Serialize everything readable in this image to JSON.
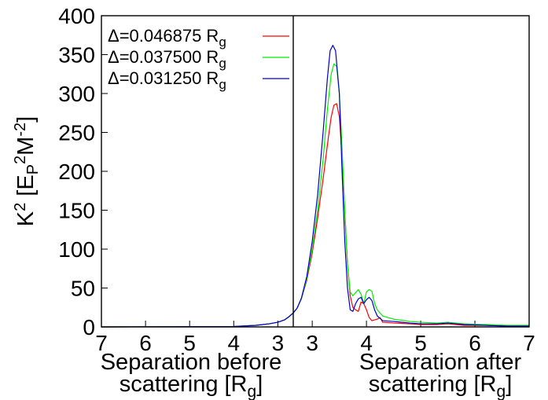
{
  "chart_data": {
    "type": "line",
    "ylabel_parts": {
      "k": "K",
      "k_sup": "2",
      "mid": " [E",
      "p": "P",
      "p_sup": "2",
      "m": "M",
      "m_sup": "-2",
      "close": "]"
    },
    "yticks": [
      "0",
      "50",
      "100",
      "150",
      "200",
      "250",
      "300",
      "350",
      "400"
    ],
    "ylim": [
      0,
      400
    ],
    "panels": [
      {
        "id": "before",
        "xlabel_line1": "Separation before",
        "xlabel_line2_text": "scattering [R",
        "xlabel_line2_sub": "g",
        "xlabel_line2_close": "]",
        "xlim": [
          7,
          2.65
        ],
        "xticks": [
          "7",
          "6",
          "5",
          "4",
          "3"
        ]
      },
      {
        "id": "after",
        "xlabel_line1": "Separation after",
        "xlabel_line2_text": "scattering [R",
        "xlabel_line2_sub": "g",
        "xlabel_line2_close": "]",
        "xlim": [
          2.65,
          7
        ],
        "xticks": [
          "3",
          "4",
          "5",
          "6",
          "7"
        ]
      }
    ],
    "legend": {
      "position": "top-left"
    },
    "series": [
      {
        "name_prefix": "Δ=0.046875 R",
        "name_sub": "g",
        "color": "#ff0000",
        "before": [
          [
            7.0,
            0
          ],
          [
            4.0,
            0.5
          ],
          [
            3.5,
            2
          ],
          [
            3.2,
            4
          ],
          [
            3.0,
            6
          ],
          [
            2.85,
            9
          ],
          [
            2.75,
            13
          ],
          [
            2.65,
            18
          ]
        ],
        "after": [
          [
            2.65,
            18
          ],
          [
            2.72,
            24
          ],
          [
            2.8,
            36
          ],
          [
            2.9,
            60
          ],
          [
            3.0,
            95
          ],
          [
            3.1,
            140
          ],
          [
            3.2,
            190
          ],
          [
            3.3,
            245
          ],
          [
            3.35,
            270
          ],
          [
            3.4,
            285
          ],
          [
            3.45,
            287
          ],
          [
            3.5,
            270
          ],
          [
            3.55,
            220
          ],
          [
            3.6,
            150
          ],
          [
            3.65,
            80
          ],
          [
            3.7,
            40
          ],
          [
            3.75,
            25
          ],
          [
            3.8,
            22
          ],
          [
            3.85,
            20
          ],
          [
            3.9,
            32
          ],
          [
            3.95,
            30
          ],
          [
            4.0,
            22
          ],
          [
            4.05,
            12
          ],
          [
            4.1,
            8
          ],
          [
            4.2,
            10
          ],
          [
            4.25,
            12
          ],
          [
            4.3,
            6
          ],
          [
            4.5,
            5
          ],
          [
            4.8,
            4
          ],
          [
            5.0,
            3
          ],
          [
            5.3,
            3
          ],
          [
            5.5,
            4
          ],
          [
            5.8,
            2
          ],
          [
            6.2,
            2
          ],
          [
            6.6,
            1
          ],
          [
            7.0,
            1
          ]
        ]
      },
      {
        "name_prefix": "Δ=0.037500 R",
        "name_sub": "g",
        "color": "#00ee00",
        "before": [
          [
            7.0,
            0
          ],
          [
            4.0,
            0.5
          ],
          [
            3.5,
            2
          ],
          [
            3.2,
            4
          ],
          [
            3.0,
            6
          ],
          [
            2.85,
            9
          ],
          [
            2.75,
            13
          ],
          [
            2.65,
            18
          ]
        ],
        "after": [
          [
            2.65,
            18
          ],
          [
            2.72,
            24
          ],
          [
            2.8,
            36
          ],
          [
            2.9,
            62
          ],
          [
            3.0,
            100
          ],
          [
            3.1,
            150
          ],
          [
            3.2,
            215
          ],
          [
            3.28,
            280
          ],
          [
            3.35,
            325
          ],
          [
            3.4,
            338
          ],
          [
            3.45,
            335
          ],
          [
            3.5,
            300
          ],
          [
            3.55,
            230
          ],
          [
            3.6,
            150
          ],
          [
            3.65,
            80
          ],
          [
            3.7,
            45
          ],
          [
            3.75,
            40
          ],
          [
            3.8,
            44
          ],
          [
            3.85,
            48
          ],
          [
            3.9,
            42
          ],
          [
            3.95,
            30
          ],
          [
            4.0,
            45
          ],
          [
            4.05,
            48
          ],
          [
            4.1,
            46
          ],
          [
            4.15,
            30
          ],
          [
            4.2,
            22
          ],
          [
            4.3,
            14
          ],
          [
            4.5,
            10
          ],
          [
            4.8,
            7
          ],
          [
            5.0,
            6
          ],
          [
            5.3,
            5
          ],
          [
            5.5,
            6
          ],
          [
            5.8,
            4
          ],
          [
            6.2,
            3
          ],
          [
            6.6,
            2
          ],
          [
            7.0,
            2
          ]
        ]
      },
      {
        "name_prefix": "Δ=0.031250 R",
        "name_sub": "g",
        "color": "#0000cc",
        "before": [
          [
            7.0,
            0
          ],
          [
            4.0,
            0.5
          ],
          [
            3.5,
            2
          ],
          [
            3.2,
            4
          ],
          [
            3.0,
            6
          ],
          [
            2.85,
            9
          ],
          [
            2.75,
            13
          ],
          [
            2.65,
            18
          ]
        ],
        "after": [
          [
            2.65,
            18
          ],
          [
            2.72,
            24
          ],
          [
            2.8,
            37
          ],
          [
            2.9,
            65
          ],
          [
            3.0,
            110
          ],
          [
            3.1,
            170
          ],
          [
            3.2,
            250
          ],
          [
            3.28,
            320
          ],
          [
            3.33,
            355
          ],
          [
            3.38,
            362
          ],
          [
            3.43,
            355
          ],
          [
            3.5,
            300
          ],
          [
            3.55,
            200
          ],
          [
            3.6,
            110
          ],
          [
            3.65,
            50
          ],
          [
            3.7,
            22
          ],
          [
            3.75,
            20
          ],
          [
            3.8,
            30
          ],
          [
            3.85,
            36
          ],
          [
            3.9,
            38
          ],
          [
            3.95,
            30
          ],
          [
            4.0,
            35
          ],
          [
            4.05,
            38
          ],
          [
            4.1,
            34
          ],
          [
            4.15,
            22
          ],
          [
            4.2,
            14
          ],
          [
            4.3,
            8
          ],
          [
            4.5,
            7
          ],
          [
            4.8,
            5
          ],
          [
            5.0,
            4
          ],
          [
            5.3,
            4
          ],
          [
            5.5,
            5
          ],
          [
            5.8,
            3
          ],
          [
            6.2,
            2
          ],
          [
            6.6,
            1
          ],
          [
            7.0,
            1
          ]
        ]
      }
    ]
  }
}
